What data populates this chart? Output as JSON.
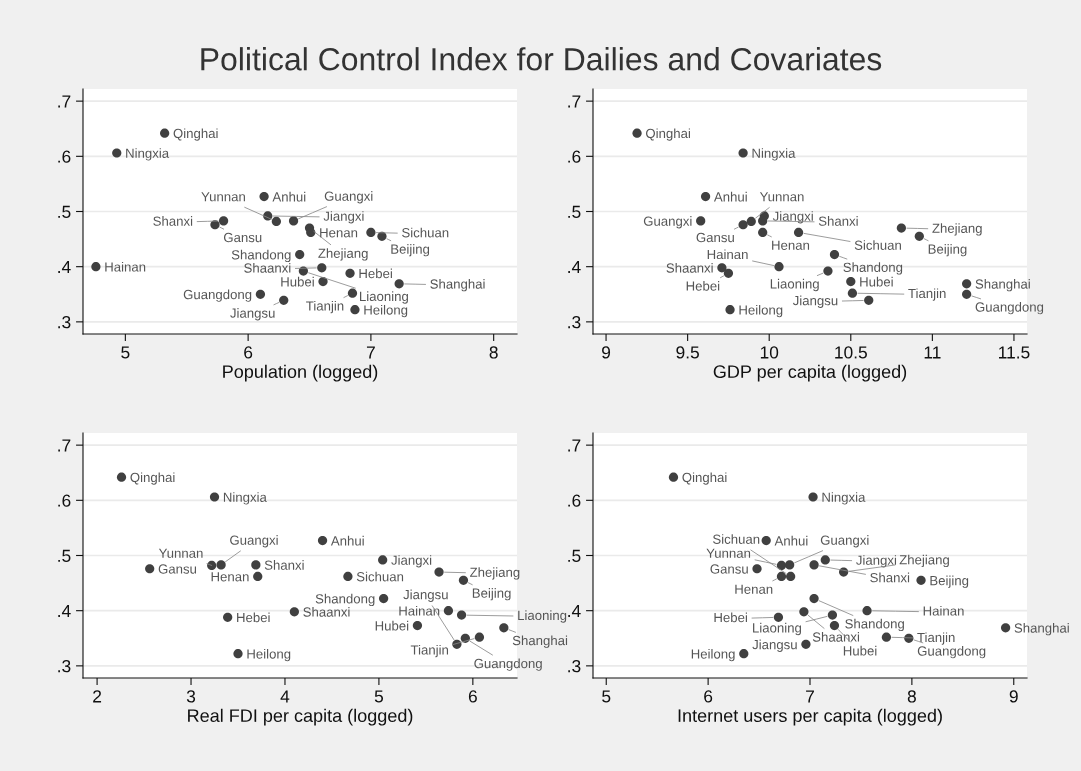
{
  "chart_data": [
    {
      "type": "scatter",
      "title": "Political Control Index for Dailies and Covariates",
      "xlabel": "Population (logged)",
      "color": "#404040",
      "marker": "circle",
      "grid": "y",
      "xlim": [
        4.655,
        8.19
      ],
      "xticks": [
        5,
        6,
        7,
        8
      ],
      "ylim": [
        0.278,
        0.722
      ],
      "yticks": [
        {
          "value": 0.3,
          "label": ".3"
        },
        {
          "value": 0.4,
          "label": ".4"
        },
        {
          "value": 0.5,
          "label": ".5"
        },
        {
          "value": 0.6,
          "label": ".6"
        },
        {
          "value": 0.7,
          "label": ".7"
        }
      ],
      "x": [
        5.32,
        4.93,
        6.13,
        6.16,
        5.8,
        5.73,
        6.23,
        6.37,
        6.5,
        6.51,
        7.0,
        7.09,
        6.42,
        4.76,
        6.6,
        6.45,
        6.83,
        6.61,
        7.23,
        6.85,
        6.1,
        6.29,
        6.87
      ],
      "values": [
        0.642,
        0.606,
        0.527,
        0.492,
        0.483,
        0.476,
        0.482,
        0.483,
        0.47,
        0.462,
        0.462,
        0.455,
        0.422,
        0.4,
        0.398,
        0.392,
        0.388,
        0.373,
        0.369,
        0.352,
        0.35,
        0.339,
        0.322
      ],
      "annotations": [
        {
          "text": "Qinghai",
          "x": 5.32,
          "y": 0.642
        },
        {
          "text": "Ningxia",
          "x": 4.93,
          "y": 0.606
        },
        {
          "text": "Anhui",
          "x": 6.13,
          "y": 0.527
        },
        {
          "text": "Jiangxi",
          "x": 6.16,
          "y": 0.492
        },
        {
          "text": "Shanxi",
          "x": 5.8,
          "y": 0.483
        },
        {
          "text": "Gansu",
          "x": 5.73,
          "y": 0.476
        },
        {
          "text": "Yunnan",
          "x": 6.23,
          "y": 0.482
        },
        {
          "text": "Guangxi",
          "x": 6.37,
          "y": 0.483
        },
        {
          "text": "Zhejiang",
          "x": 6.5,
          "y": 0.47
        },
        {
          "text": "Henan",
          "x": 6.51,
          "y": 0.462
        },
        {
          "text": "Sichuan",
          "x": 7.0,
          "y": 0.462
        },
        {
          "text": "Beijing",
          "x": 7.09,
          "y": 0.455
        },
        {
          "text": "Shandong",
          "x": 6.42,
          "y": 0.422
        },
        {
          "text": "Hainan",
          "x": 4.76,
          "y": 0.4
        },
        {
          "text": "Shaanxi",
          "x": 6.6,
          "y": 0.398
        },
        {
          "text": "Liaoning",
          "x": 6.45,
          "y": 0.392
        },
        {
          "text": "Hebei",
          "x": 6.83,
          "y": 0.388
        },
        {
          "text": "Hubei",
          "x": 6.61,
          "y": 0.373
        },
        {
          "text": "Shanghai",
          "x": 7.23,
          "y": 0.369
        },
        {
          "text": "Tianjin",
          "x": 6.85,
          "y": 0.352
        },
        {
          "text": "Guangdong",
          "x": 6.1,
          "y": 0.35
        },
        {
          "text": "Jiangsu",
          "x": 6.29,
          "y": 0.339
        },
        {
          "text": "Heilong",
          "x": 6.87,
          "y": 0.322
        }
      ]
    },
    {
      "type": "scatter",
      "xlabel": "GDP per capita (logged)",
      "color": "#404040",
      "marker": "circle",
      "grid": "y",
      "xlim": [
        8.92,
        11.58
      ],
      "xticks": [
        9,
        9.5,
        10,
        10.5,
        11,
        11.5
      ],
      "ylim": [
        0.278,
        0.722
      ],
      "yticks": [
        {
          "value": 0.3,
          "label": ".3"
        },
        {
          "value": 0.4,
          "label": ".4"
        },
        {
          "value": 0.5,
          "label": ".5"
        },
        {
          "value": 0.6,
          "label": ".6"
        },
        {
          "value": 0.7,
          "label": ".7"
        }
      ],
      "x": [
        9.19,
        9.84,
        9.61,
        9.97,
        9.96,
        9.84,
        9.89,
        9.58,
        10.81,
        9.96,
        10.18,
        10.92,
        10.4,
        10.06,
        9.71,
        10.36,
        9.75,
        10.5,
        11.21,
        10.51,
        11.21,
        10.61,
        9.76
      ],
      "values": [
        0.642,
        0.606,
        0.527,
        0.492,
        0.483,
        0.476,
        0.482,
        0.483,
        0.47,
        0.462,
        0.462,
        0.455,
        0.422,
        0.4,
        0.398,
        0.392,
        0.388,
        0.373,
        0.369,
        0.352,
        0.35,
        0.339,
        0.322
      ],
      "annotations": [
        {
          "text": "Qinghai",
          "x": 9.19,
          "y": 0.642
        },
        {
          "text": "Ningxia",
          "x": 9.84,
          "y": 0.606
        },
        {
          "text": "Anhui",
          "x": 9.61,
          "y": 0.527
        },
        {
          "text": "Jiangxi",
          "x": 9.97,
          "y": 0.492
        },
        {
          "text": "Shanxi",
          "x": 9.96,
          "y": 0.483
        },
        {
          "text": "Gansu",
          "x": 9.84,
          "y": 0.476
        },
        {
          "text": "Yunnan",
          "x": 9.89,
          "y": 0.482
        },
        {
          "text": "Guangxi",
          "x": 9.58,
          "y": 0.483
        },
        {
          "text": "Zhejiang",
          "x": 10.81,
          "y": 0.47
        },
        {
          "text": "Henan",
          "x": 9.96,
          "y": 0.462
        },
        {
          "text": "Sichuan",
          "x": 10.18,
          "y": 0.462
        },
        {
          "text": "Beijing",
          "x": 10.92,
          "y": 0.455
        },
        {
          "text": "Shandong",
          "x": 10.4,
          "y": 0.422
        },
        {
          "text": "Hainan",
          "x": 10.06,
          "y": 0.4
        },
        {
          "text": "Shaanxi",
          "x": 9.71,
          "y": 0.398
        },
        {
          "text": "Liaoning",
          "x": 10.36,
          "y": 0.392
        },
        {
          "text": "Hebei",
          "x": 9.75,
          "y": 0.388
        },
        {
          "text": "Hubei",
          "x": 10.5,
          "y": 0.373
        },
        {
          "text": "Shanghai",
          "x": 11.21,
          "y": 0.369
        },
        {
          "text": "Tianjin",
          "x": 10.51,
          "y": 0.352
        },
        {
          "text": "Guangdong",
          "x": 11.21,
          "y": 0.35
        },
        {
          "text": "Jiangsu",
          "x": 10.61,
          "y": 0.339
        },
        {
          "text": "Heilong",
          "x": 9.76,
          "y": 0.322
        }
      ]
    },
    {
      "type": "scatter",
      "xlabel": "Real FDI per capita (logged)",
      "color": "#404040",
      "marker": "circle",
      "grid": "y",
      "xlim": [
        1.85,
        6.47
      ],
      "xticks": [
        2,
        3,
        4,
        5,
        6
      ],
      "ylim": [
        0.278,
        0.722
      ],
      "yticks": [
        {
          "value": 0.3,
          "label": ".3"
        },
        {
          "value": 0.4,
          "label": ".4"
        },
        {
          "value": 0.5,
          "label": ".5"
        },
        {
          "value": 0.6,
          "label": ".6"
        },
        {
          "value": 0.7,
          "label": ".7"
        }
      ],
      "x": [
        2.26,
        3.25,
        4.4,
        5.04,
        3.69,
        2.56,
        3.22,
        3.32,
        5.64,
        3.71,
        4.67,
        5.9,
        5.05,
        5.74,
        4.1,
        5.88,
        3.39,
        5.41,
        6.33,
        6.07,
        5.92,
        5.83,
        3.5
      ],
      "values": [
        0.642,
        0.606,
        0.527,
        0.492,
        0.483,
        0.476,
        0.482,
        0.483,
        0.47,
        0.462,
        0.462,
        0.455,
        0.422,
        0.4,
        0.398,
        0.392,
        0.388,
        0.373,
        0.369,
        0.352,
        0.35,
        0.339,
        0.322
      ],
      "annotations": [
        {
          "text": "Qinghai",
          "x": 2.26,
          "y": 0.642
        },
        {
          "text": "Ningxia",
          "x": 3.25,
          "y": 0.606
        },
        {
          "text": "Anhui",
          "x": 4.4,
          "y": 0.527
        },
        {
          "text": "Jiangxi",
          "x": 5.04,
          "y": 0.492
        },
        {
          "text": "Shanxi",
          "x": 3.69,
          "y": 0.483
        },
        {
          "text": "Gansu",
          "x": 2.56,
          "y": 0.476
        },
        {
          "text": "Yunnan",
          "x": 3.22,
          "y": 0.482
        },
        {
          "text": "Guangxi",
          "x": 3.32,
          "y": 0.483
        },
        {
          "text": "Zhejiang",
          "x": 5.64,
          "y": 0.47
        },
        {
          "text": "Henan",
          "x": 3.71,
          "y": 0.462
        },
        {
          "text": "Sichuan",
          "x": 4.67,
          "y": 0.462
        },
        {
          "text": "Beijing",
          "x": 5.9,
          "y": 0.455
        },
        {
          "text": "Shandong",
          "x": 5.05,
          "y": 0.422
        },
        {
          "text": "Hainan",
          "x": 5.74,
          "y": 0.4
        },
        {
          "text": "Shaanxi",
          "x": 4.1,
          "y": 0.398
        },
        {
          "text": "Liaoning",
          "x": 5.88,
          "y": 0.392
        },
        {
          "text": "Hebei",
          "x": 3.39,
          "y": 0.388
        },
        {
          "text": "Hubei",
          "x": 5.41,
          "y": 0.373
        },
        {
          "text": "Shanghai",
          "x": 6.33,
          "y": 0.369
        },
        {
          "text": "Tianjin",
          "x": 6.07,
          "y": 0.352
        },
        {
          "text": "Guangdong",
          "x": 5.92,
          "y": 0.35
        },
        {
          "text": "Jiangsu",
          "x": 5.83,
          "y": 0.339
        },
        {
          "text": "Heilong",
          "x": 3.5,
          "y": 0.322
        }
      ]
    },
    {
      "type": "scatter",
      "xlabel": "Internet users per capita (logged)",
      "color": "#404040",
      "marker": "circle",
      "grid": "y",
      "xlim": [
        4.87,
        9.13
      ],
      "xticks": [
        5,
        6,
        7,
        8,
        9
      ],
      "ylim": [
        0.278,
        0.722
      ],
      "yticks": [
        {
          "value": 0.3,
          "label": ".3"
        },
        {
          "value": 0.4,
          "label": ".4"
        },
        {
          "value": 0.5,
          "label": ".5"
        },
        {
          "value": 0.6,
          "label": ".6"
        },
        {
          "value": 0.7,
          "label": ".7"
        }
      ],
      "x": [
        5.66,
        7.03,
        6.57,
        7.15,
        7.04,
        6.48,
        6.72,
        6.8,
        7.33,
        6.72,
        6.81,
        8.09,
        7.04,
        7.56,
        6.94,
        7.22,
        6.69,
        7.24,
        8.92,
        7.75,
        7.97,
        6.96,
        6.35
      ],
      "values": [
        0.642,
        0.606,
        0.527,
        0.492,
        0.483,
        0.476,
        0.482,
        0.483,
        0.47,
        0.462,
        0.462,
        0.455,
        0.422,
        0.4,
        0.398,
        0.392,
        0.388,
        0.373,
        0.369,
        0.352,
        0.35,
        0.339,
        0.322
      ],
      "annotations": [
        {
          "text": "Qinghai",
          "x": 5.66,
          "y": 0.642
        },
        {
          "text": "Ningxia",
          "x": 7.03,
          "y": 0.606
        },
        {
          "text": "Anhui",
          "x": 6.57,
          "y": 0.527
        },
        {
          "text": "Jiangxi",
          "x": 7.15,
          "y": 0.492
        },
        {
          "text": "Shanxi",
          "x": 7.04,
          "y": 0.483
        },
        {
          "text": "Gansu",
          "x": 6.48,
          "y": 0.476
        },
        {
          "text": "Yunnan",
          "x": 6.72,
          "y": 0.482
        },
        {
          "text": "Guangxi",
          "x": 6.8,
          "y": 0.483
        },
        {
          "text": "Zhejiang",
          "x": 7.33,
          "y": 0.47
        },
        {
          "text": "Henan",
          "x": 6.72,
          "y": 0.462
        },
        {
          "text": "Sichuan",
          "x": 6.81,
          "y": 0.462
        },
        {
          "text": "Beijing",
          "x": 8.09,
          "y": 0.455
        },
        {
          "text": "Shandong",
          "x": 7.04,
          "y": 0.422
        },
        {
          "text": "Hainan",
          "x": 7.56,
          "y": 0.4
        },
        {
          "text": "Shaanxi",
          "x": 6.94,
          "y": 0.398
        },
        {
          "text": "Liaoning",
          "x": 7.22,
          "y": 0.392
        },
        {
          "text": "Hebei",
          "x": 6.69,
          "y": 0.388
        },
        {
          "text": "Hubei",
          "x": 7.24,
          "y": 0.373
        },
        {
          "text": "Shanghai",
          "x": 8.92,
          "y": 0.369
        },
        {
          "text": "Tianjin",
          "x": 7.75,
          "y": 0.352
        },
        {
          "text": "Guangdong",
          "x": 7.97,
          "y": 0.35
        },
        {
          "text": "Jiangsu",
          "x": 6.96,
          "y": 0.339
        },
        {
          "text": "Heilong",
          "x": 6.35,
          "y": 0.322
        }
      ]
    }
  ]
}
